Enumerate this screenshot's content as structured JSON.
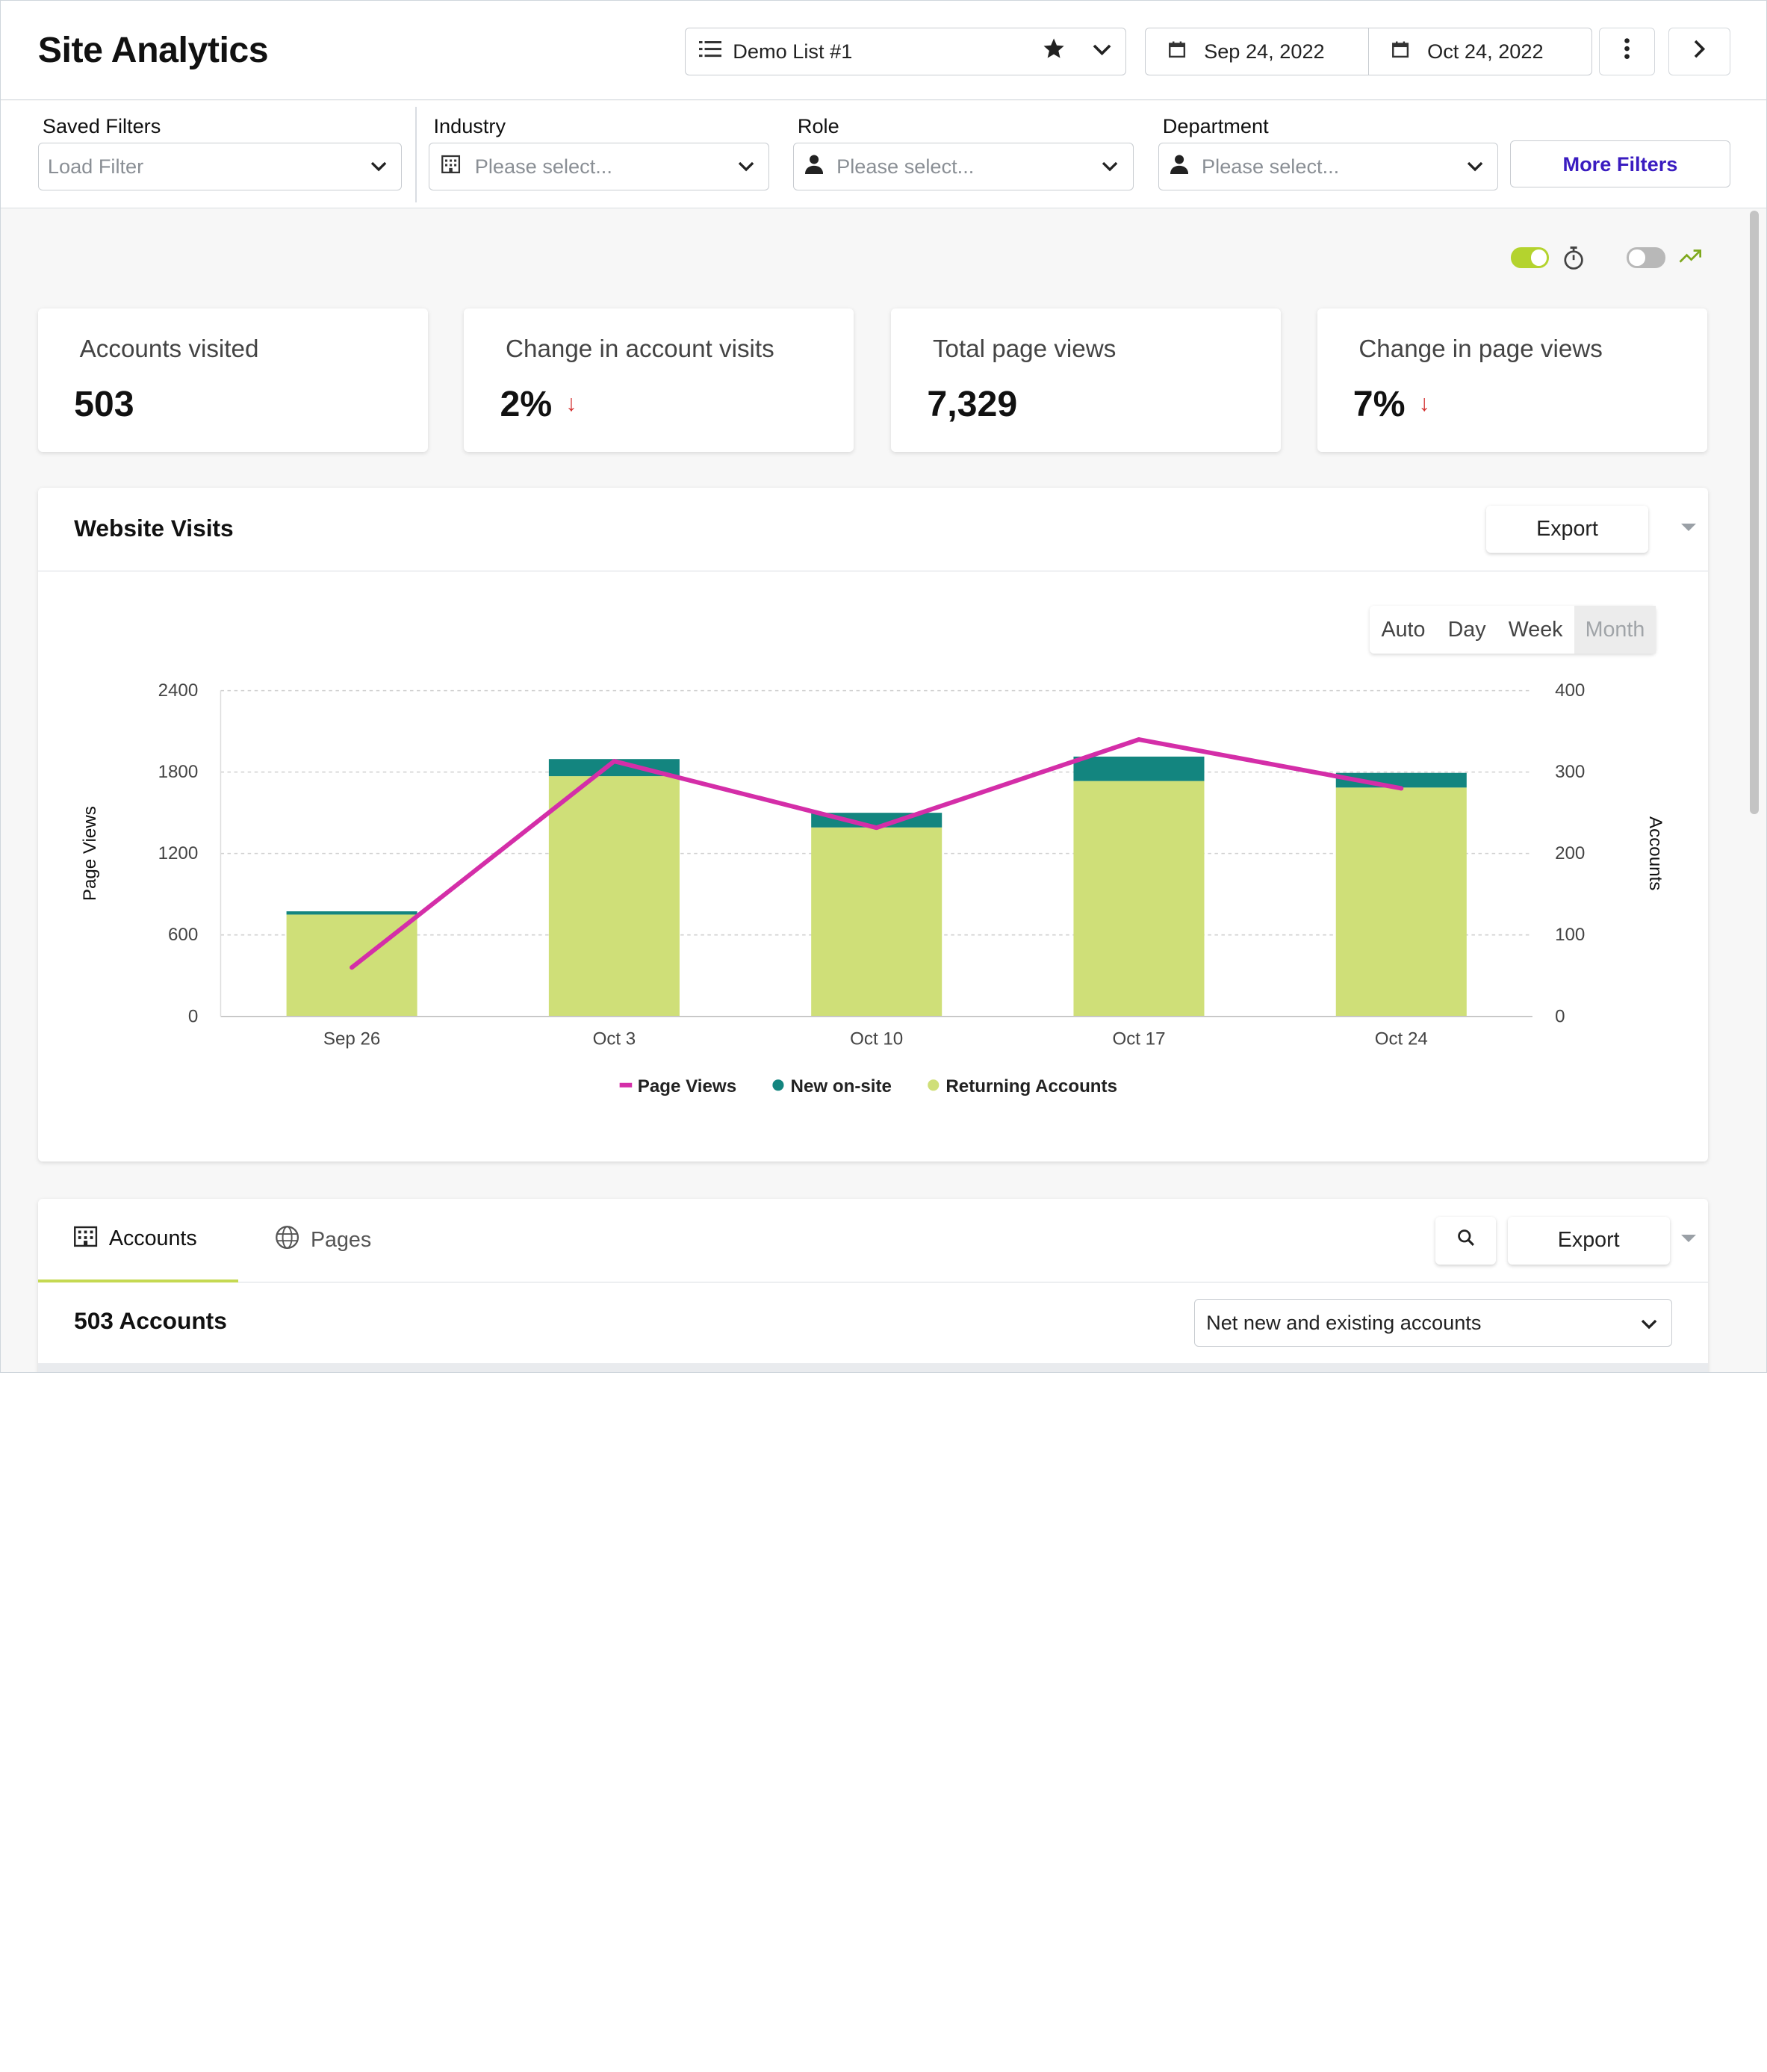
{
  "header": {
    "title": "Site Analytics",
    "list_name": "Demo List #1",
    "date_start": "Sep 24, 2022",
    "date_end": "Oct 24, 2022"
  },
  "filters": {
    "saved": {
      "label": "Saved Filters",
      "placeholder": "Load Filter"
    },
    "industry": {
      "label": "Industry",
      "placeholder": "Please select..."
    },
    "role": {
      "label": "Role",
      "placeholder": "Please select..."
    },
    "department": {
      "label": "Department",
      "placeholder": "Please select..."
    },
    "more_label": "More Filters"
  },
  "toggles": {
    "timer_on": true,
    "trend_on": false
  },
  "stats": [
    {
      "label": "Accounts visited",
      "value": "503",
      "trend": ""
    },
    {
      "label": "Change in account visits",
      "value": "2%",
      "trend": "down"
    },
    {
      "label": "Total page views",
      "value": "7,329",
      "trend": ""
    },
    {
      "label": "Change in page views",
      "value": "7%",
      "trend": "down"
    }
  ],
  "website_visits": {
    "title": "Website Visits",
    "export_label": "Export",
    "granularity": [
      "Auto",
      "Day",
      "Week",
      "Month"
    ],
    "granularity_selected": "Month"
  },
  "colors": {
    "returning": "#cfdf78",
    "new": "#13857f",
    "page_views": "#d42ea8",
    "accent": "#3a1cc0",
    "toggle_on": "#b4d32e"
  },
  "chart_data": {
    "type": "bar",
    "categories": [
      "Sep 26",
      "Oct 3",
      "Oct 10",
      "Oct 17",
      "Oct 24"
    ],
    "series": [
      {
        "name": "Returning Accounts",
        "axis": "right",
        "values": [
          125,
          295,
          232,
          289,
          281
        ]
      },
      {
        "name": "New on-site",
        "axis": "right",
        "values": [
          4,
          21,
          18,
          30,
          18
        ]
      },
      {
        "name": "Page Views",
        "type": "line",
        "axis": "left",
        "values": [
          360,
          1880,
          1390,
          2040,
          1680
        ]
      }
    ],
    "ylabel": "Page Views",
    "y2label": "Accounts",
    "ylim": [
      0,
      2400
    ],
    "y2lim": [
      0,
      400
    ],
    "yticks": [
      "0",
      "600",
      "1200",
      "1800",
      "2400"
    ],
    "y2ticks": [
      "0",
      "100",
      "200",
      "300",
      "400"
    ],
    "legend": [
      "Page Views",
      "New on-site",
      "Returning Accounts"
    ],
    "legend_position": "bottom",
    "grid": true
  },
  "table": {
    "tabs": [
      "Accounts",
      "Pages"
    ],
    "active_tab": "Accounts",
    "export_label": "Export",
    "count_label": "503 Accounts",
    "scope_select": "Net new and existing accounts"
  }
}
